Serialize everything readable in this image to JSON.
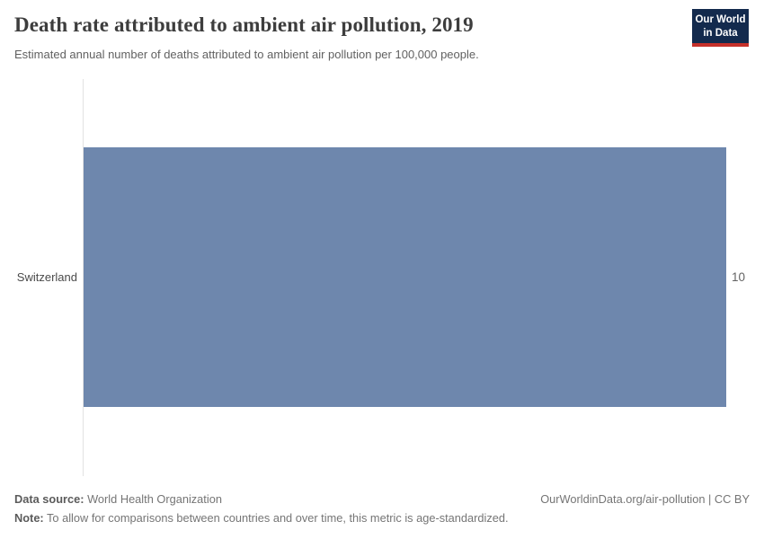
{
  "header": {
    "title": "Death rate attributed to ambient air pollution, 2019",
    "subtitle": "Estimated annual number of deaths attributed to ambient air pollution per 100,000 people.",
    "logo": {
      "line1": "Our World",
      "line2": "in Data",
      "bg_color": "#132a4d",
      "accent_color": "#c5302a"
    }
  },
  "chart_data": {
    "type": "bar",
    "orientation": "horizontal",
    "title": "Death rate attributed to ambient air pollution, 2019",
    "categories": [
      "Switzerland"
    ],
    "values": [
      10
    ],
    "value_labels": [
      "10"
    ],
    "xlabel": "",
    "ylabel": "",
    "xlim": [
      0,
      10
    ],
    "grid": false,
    "legend": false,
    "bar_color": "#6e87ad",
    "axis_color": "#e2e2e2"
  },
  "footer": {
    "data_source_label": "Data source:",
    "data_source_value": " World Health Organization",
    "note_label": "Note:",
    "note_value": " To allow for comparisons between countries and over time, this metric is age-standardized.",
    "credit": "OurWorldinData.org/air-pollution | CC BY"
  }
}
